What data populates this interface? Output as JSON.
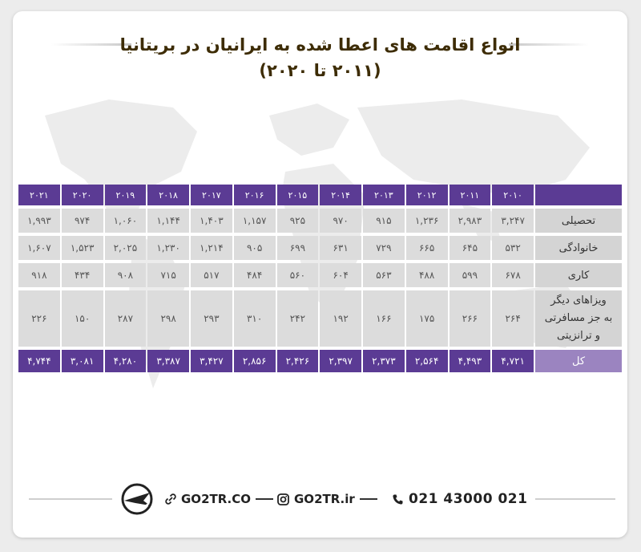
{
  "title": {
    "line1": "انواع اقامت های اعطا شده به ایرانیان در بریتانیا",
    "line2": "(۲۰۱۱ تا ۲۰۲۰)"
  },
  "chart_data": {
    "type": "table",
    "columns": [
      "۲۰۱۰",
      "۲۰۱۱",
      "۲۰۱۲",
      "۲۰۱۳",
      "۲۰۱۴",
      "۲۰۱۵",
      "۲۰۱۶",
      "۲۰۱۷",
      "۲۰۱۸",
      "۲۰۱۹",
      "۲۰۲۰",
      "۲۰۲۱"
    ],
    "rows": [
      {
        "label": "تحصیلی",
        "values": [
          "۳,۲۴۷",
          "۲,۹۸۳",
          "۱,۲۳۶",
          "۹۱۵",
          "۹۷۰",
          "۹۲۵",
          "۱,۱۵۷",
          "۱,۴۰۳",
          "۱,۱۴۴",
          "۱,۰۶۰",
          "۹۷۴",
          "۱,۹۹۳"
        ]
      },
      {
        "label": "خانوادگی",
        "values": [
          "۵۳۲",
          "۶۴۵",
          "۶۶۵",
          "۷۲۹",
          "۶۳۱",
          "۶۹۹",
          "۹۰۵",
          "۱,۲۱۴",
          "۱,۲۳۰",
          "۲,۰۲۵",
          "۱,۵۲۳",
          "۱,۶۰۷"
        ]
      },
      {
        "label": "کاری",
        "values": [
          "۶۷۸",
          "۵۹۹",
          "۴۸۸",
          "۵۶۳",
          "۶۰۴",
          "۵۶۰",
          "۴۸۴",
          "۵۱۷",
          "۷۱۵",
          "۹۰۸",
          "۴۳۴",
          "۹۱۸"
        ]
      },
      {
        "label_lines": [
          "ویزاهای دیگر",
          "به جز مسافرتی",
          "و ترانزیتی"
        ],
        "values": [
          "۲۶۴",
          "۲۶۶",
          "۱۷۵",
          "۱۶۶",
          "۱۹۲",
          "۲۴۲",
          "۳۱۰",
          "۲۹۳",
          "۲۹۸",
          "۲۸۷",
          "۱۵۰",
          "۲۲۶"
        ]
      }
    ],
    "total": {
      "label": "کل",
      "values": [
        "۴,۷۲۱",
        "۴,۴۹۳",
        "۲,۵۶۴",
        "۲,۳۷۳",
        "۲,۳۹۷",
        "۲,۴۲۶",
        "۲,۸۵۶",
        "۳,۴۲۷",
        "۳,۳۸۷",
        "۴,۲۸۰",
        "۳,۰۸۱",
        "۴,۷۴۴"
      ]
    }
  },
  "footer": {
    "phone": "021 43000 021",
    "instagram": "GO2TR.ir",
    "website": "GO2TR.CO",
    "icons": [
      "phone-icon",
      "instagram-icon",
      "link-icon",
      "logo-icon"
    ]
  },
  "colors": {
    "header_purple": "#5b3b94",
    "total_label_purple": "#9b84c0",
    "cell_gray": "#dcdcdc",
    "title_brown": "#3d2c05"
  }
}
